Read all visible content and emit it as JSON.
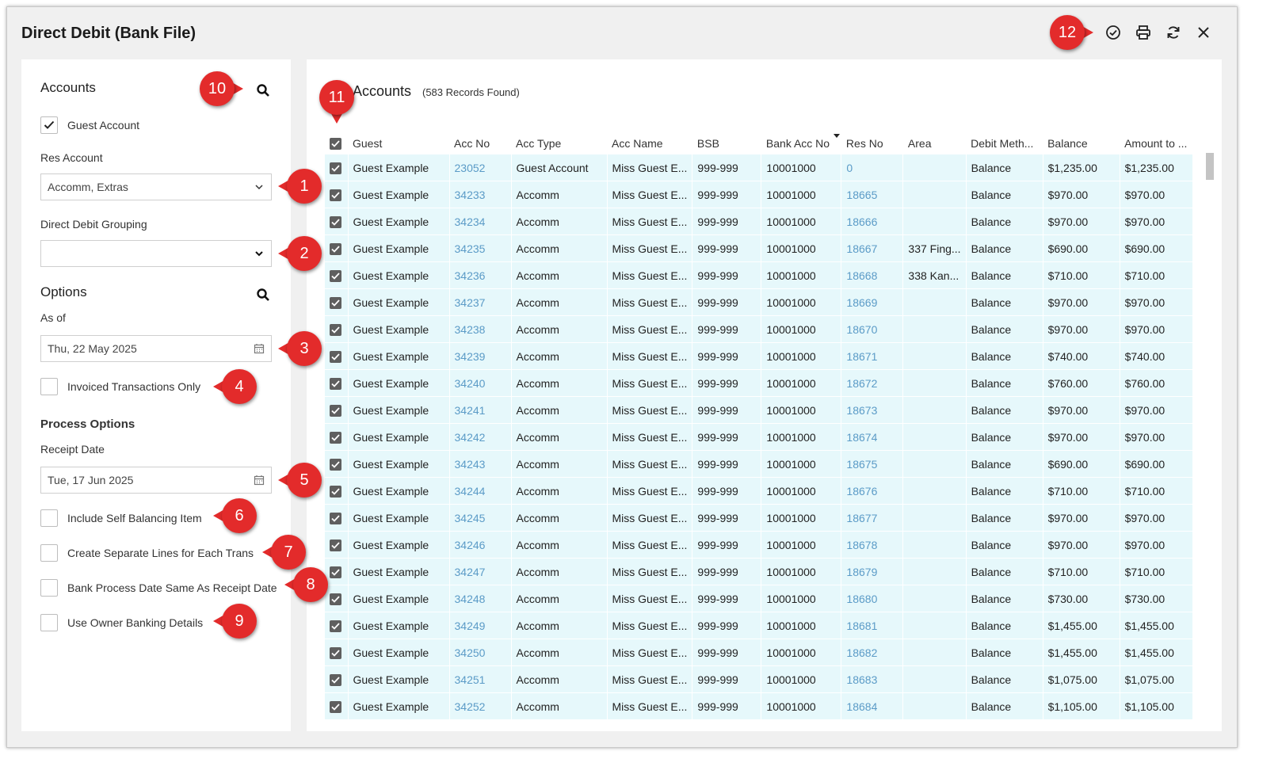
{
  "window": {
    "title": "Direct Debit (Bank File)"
  },
  "toolbar": {
    "icons": [
      "check-circle-icon",
      "print-icon",
      "refresh-icon",
      "close-icon"
    ]
  },
  "left": {
    "accounts_heading": "Accounts",
    "guest_account_label": "Guest Account",
    "guest_account_checked": true,
    "res_account_label": "Res Account",
    "res_account_value": "Accomm, Extras",
    "grouping_label": "Direct Debit Grouping",
    "grouping_value": "",
    "options_heading": "Options",
    "as_of_label": "As of",
    "as_of_value": "Thu, 22 May 2025",
    "invoiced_only_label": "Invoiced Transactions Only",
    "process_options_heading": "Process Options",
    "receipt_date_label": "Receipt Date",
    "receipt_date_value": "Tue, 17 Jun 2025",
    "self_balancing_label": "Include Self Balancing Item",
    "separate_lines_label": "Create Separate Lines for Each Trans",
    "bank_process_label": "Bank Process Date Same As Receipt Date",
    "owner_banking_label": "Use Owner Banking Details"
  },
  "grid": {
    "heading": "Accounts",
    "count": "(583 Records Found)",
    "columns": [
      "Guest",
      "Acc No",
      "Acc Type",
      "Acc Name",
      "BSB",
      "Bank Acc No",
      "Res No",
      "Area",
      "Debit Meth...",
      "Balance",
      "Amount to ..."
    ],
    "rows": [
      [
        "Guest Example",
        "23052",
        "Guest Account",
        "Miss Guest E...",
        "999-999",
        "10001000",
        "0",
        "",
        "Balance",
        "$1,235.00",
        "$1,235.00"
      ],
      [
        "Guest Example",
        "34233",
        "Accomm",
        "Miss Guest E...",
        "999-999",
        "10001000",
        "18665",
        "",
        "Balance",
        "$970.00",
        "$970.00"
      ],
      [
        "Guest Example",
        "34234",
        "Accomm",
        "Miss Guest E...",
        "999-999",
        "10001000",
        "18666",
        "",
        "Balance",
        "$970.00",
        "$970.00"
      ],
      [
        "Guest Example",
        "34235",
        "Accomm",
        "Miss Guest E...",
        "999-999",
        "10001000",
        "18667",
        "337 Fing...",
        "Balance",
        "$690.00",
        "$690.00"
      ],
      [
        "Guest Example",
        "34236",
        "Accomm",
        "Miss Guest E...",
        "999-999",
        "10001000",
        "18668",
        "338 Kan...",
        "Balance",
        "$710.00",
        "$710.00"
      ],
      [
        "Guest Example",
        "34237",
        "Accomm",
        "Miss Guest E...",
        "999-999",
        "10001000",
        "18669",
        "",
        "Balance",
        "$970.00",
        "$970.00"
      ],
      [
        "Guest Example",
        "34238",
        "Accomm",
        "Miss Guest E...",
        "999-999",
        "10001000",
        "18670",
        "",
        "Balance",
        "$970.00",
        "$970.00"
      ],
      [
        "Guest Example",
        "34239",
        "Accomm",
        "Miss Guest E...",
        "999-999",
        "10001000",
        "18671",
        "",
        "Balance",
        "$740.00",
        "$740.00"
      ],
      [
        "Guest Example",
        "34240",
        "Accomm",
        "Miss Guest E...",
        "999-999",
        "10001000",
        "18672",
        "",
        "Balance",
        "$760.00",
        "$760.00"
      ],
      [
        "Guest Example",
        "34241",
        "Accomm",
        "Miss Guest E...",
        "999-999",
        "10001000",
        "18673",
        "",
        "Balance",
        "$970.00",
        "$970.00"
      ],
      [
        "Guest Example",
        "34242",
        "Accomm",
        "Miss Guest E...",
        "999-999",
        "10001000",
        "18674",
        "",
        "Balance",
        "$970.00",
        "$970.00"
      ],
      [
        "Guest Example",
        "34243",
        "Accomm",
        "Miss Guest E...",
        "999-999",
        "10001000",
        "18675",
        "",
        "Balance",
        "$690.00",
        "$690.00"
      ],
      [
        "Guest Example",
        "34244",
        "Accomm",
        "Miss Guest E...",
        "999-999",
        "10001000",
        "18676",
        "",
        "Balance",
        "$710.00",
        "$710.00"
      ],
      [
        "Guest Example",
        "34245",
        "Accomm",
        "Miss Guest E...",
        "999-999",
        "10001000",
        "18677",
        "",
        "Balance",
        "$970.00",
        "$970.00"
      ],
      [
        "Guest Example",
        "34246",
        "Accomm",
        "Miss Guest E...",
        "999-999",
        "10001000",
        "18678",
        "",
        "Balance",
        "$970.00",
        "$970.00"
      ],
      [
        "Guest Example",
        "34247",
        "Accomm",
        "Miss Guest E...",
        "999-999",
        "10001000",
        "18679",
        "",
        "Balance",
        "$710.00",
        "$710.00"
      ],
      [
        "Guest Example",
        "34248",
        "Accomm",
        "Miss Guest E...",
        "999-999",
        "10001000",
        "18680",
        "",
        "Balance",
        "$730.00",
        "$730.00"
      ],
      [
        "Guest Example",
        "34249",
        "Accomm",
        "Miss Guest E...",
        "999-999",
        "10001000",
        "18681",
        "",
        "Balance",
        "$1,455.00",
        "$1,455.00"
      ],
      [
        "Guest Example",
        "34250",
        "Accomm",
        "Miss Guest E...",
        "999-999",
        "10001000",
        "18682",
        "",
        "Balance",
        "$1,455.00",
        "$1,455.00"
      ],
      [
        "Guest Example",
        "34251",
        "Accomm",
        "Miss Guest E...",
        "999-999",
        "10001000",
        "18683",
        "",
        "Balance",
        "$1,075.00",
        "$1,075.00"
      ],
      [
        "Guest Example",
        "34252",
        "Accomm",
        "Miss Guest E...",
        "999-999",
        "10001000",
        "18684",
        "",
        "Balance",
        "$1,105.00",
        "$1,105.00"
      ]
    ]
  },
  "callouts": [
    "1",
    "2",
    "3",
    "4",
    "5",
    "6",
    "7",
    "8",
    "9",
    "10",
    "11",
    "12"
  ],
  "colors": {
    "callout": "#e32b2b",
    "row_bg": "#e6f8fb",
    "link": "#5b9bc7"
  }
}
